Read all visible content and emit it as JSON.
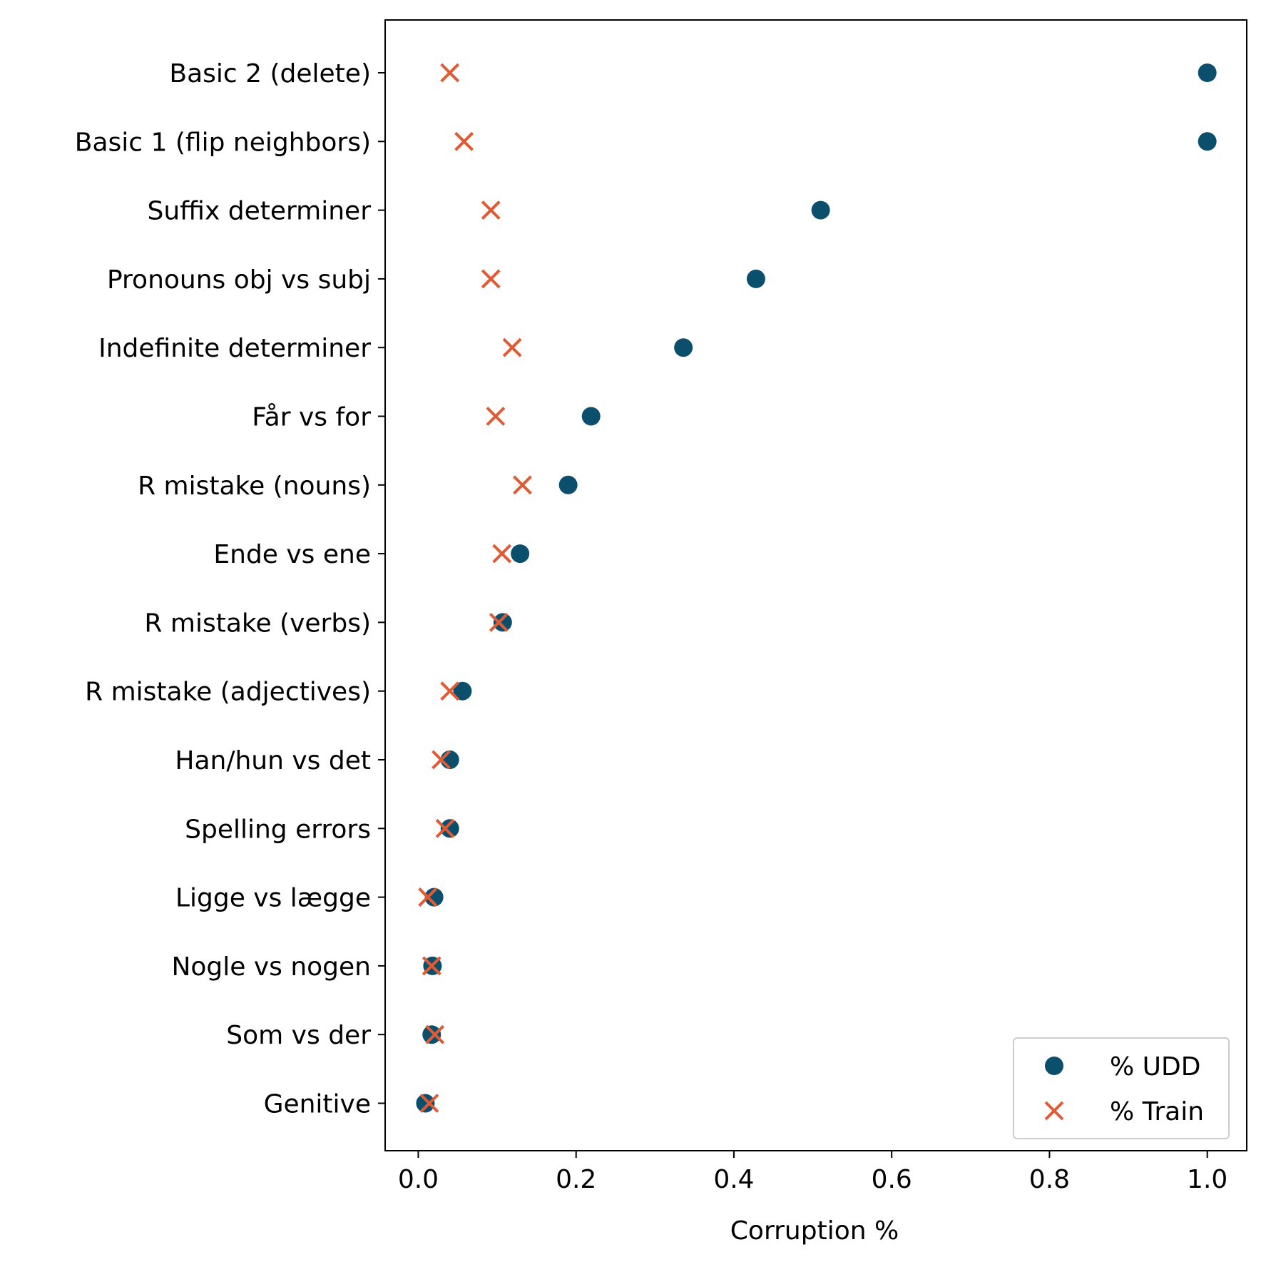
{
  "chart_data": {
    "type": "scatter",
    "orientation": "horizontal",
    "title": "",
    "xlabel": "Corruption %",
    "ylabel": "",
    "xlim": [
      -0.042,
      1.05
    ],
    "xticks": [
      0.0,
      0.2,
      0.4,
      0.6,
      0.8,
      1.0
    ],
    "xtick_labels": [
      "0.0",
      "0.2",
      "0.4",
      "0.6",
      "0.8",
      "1.0"
    ],
    "grid": false,
    "legend_location": "lower-right",
    "categories": [
      "Basic 2 (delete)",
      "Basic 1 (flip neighbors)",
      "Suffix determiner",
      "Pronouns obj vs subj",
      "Indefinite determiner",
      "Får vs for",
      "R mistake (nouns)",
      "Ende vs ene",
      "R mistake (verbs)",
      "R mistake (adjectives)",
      "Han/hun vs det",
      "Spelling errors",
      "Ligge vs lægge",
      "Nogle vs nogen",
      "Som vs der",
      "Genitive"
    ],
    "series": [
      {
        "name": "% UDD",
        "marker": "circle",
        "color": "#0b4f6c",
        "values": [
          1.0,
          1.0,
          0.51,
          0.428,
          0.336,
          0.219,
          0.19,
          0.129,
          0.107,
          0.056,
          0.04,
          0.04,
          0.02,
          0.018,
          0.017,
          0.009
        ]
      },
      {
        "name": "% Train",
        "marker": "x",
        "color": "#e05a33",
        "values": [
          0.04,
          0.058,
          0.092,
          0.092,
          0.119,
          0.098,
          0.132,
          0.106,
          0.102,
          0.04,
          0.029,
          0.034,
          0.012,
          0.017,
          0.021,
          0.014
        ]
      }
    ]
  }
}
